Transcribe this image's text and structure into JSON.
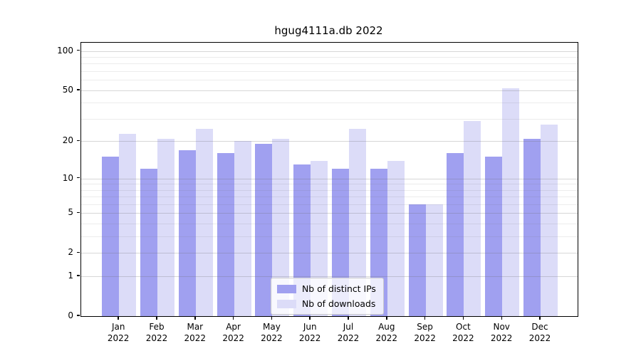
{
  "chart_data": {
    "type": "bar",
    "title": "hgug4111a.db 2022",
    "y_scale": "log1p",
    "x_months": [
      "Jan",
      "Feb",
      "Mar",
      "Apr",
      "May",
      "Jun",
      "Jul",
      "Aug",
      "Sep",
      "Oct",
      "Nov",
      "Dec"
    ],
    "year": "2022",
    "categories": [
      "Jan 2022",
      "Feb 2022",
      "Mar 2022",
      "Apr 2022",
      "May 2022",
      "Jun 2022",
      "Jul 2022",
      "Aug 2022",
      "Sep 2022",
      "Oct 2022",
      "Nov 2022",
      "Dec 2022"
    ],
    "series": [
      {
        "name": "Nb of distinct IPs",
        "color": "#a0a0f0",
        "values": [
          15,
          12,
          17,
          16,
          19,
          13,
          12,
          12,
          6,
          16,
          15,
          21
        ]
      },
      {
        "name": "Nb of downloads",
        "color": "#dcdcf8",
        "values": [
          23,
          21,
          25,
          20,
          21,
          14,
          25,
          14,
          6,
          29,
          52,
          27
        ]
      }
    ],
    "y_ticks": [
      100,
      50,
      20,
      10,
      5,
      2,
      1,
      0
    ],
    "y_minor_gridlines": [
      3,
      4,
      6,
      7,
      8,
      9,
      30,
      40,
      60,
      70,
      80,
      90
    ],
    "ylim": [
      0,
      115
    ],
    "grid": true,
    "legend_position": "lower center"
  },
  "style": {
    "background": "#ffffff",
    "spine_color": "#000000",
    "text_color": "#000000",
    "grid_major_color": "rgba(110,110,110,0.28)",
    "grid_minor_color": "rgba(110,110,110,0.13)"
  }
}
